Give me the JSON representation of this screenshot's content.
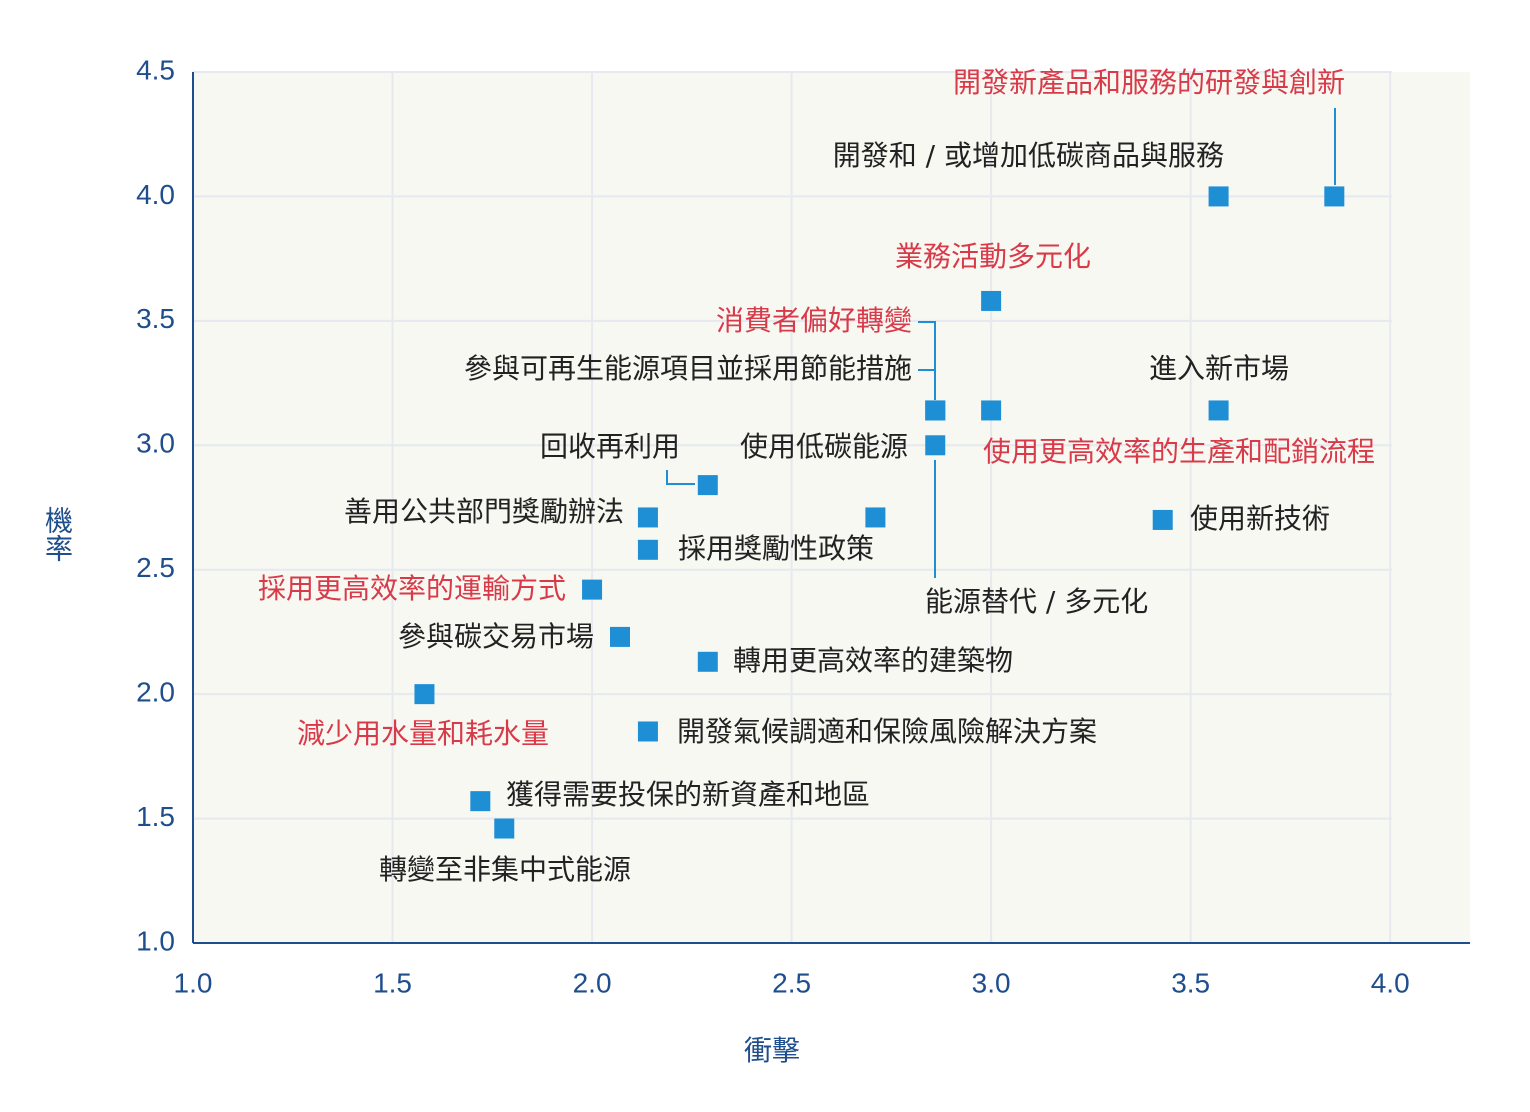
{
  "chart_data": {
    "type": "scatter",
    "x_label": "衝擊",
    "y_label": "機率",
    "point_labels": [
      "開發新產品和服務的研發與創新",
      "開發和 / 或增加低碳商品與服務",
      "業務活動多元化",
      "消費者偏好轉變",
      "參與可再生能源項目並採用節能措施",
      "使用更高效率的生產和配銷流程",
      "進入新市場",
      "使用低碳能源",
      "回收再利用",
      "善用公共部門獎勵辦法",
      "能源替代 / 多元化",
      "使用新技術",
      "採用獎勵性政策",
      "採用更高效率的運輸方式",
      "參與碳交易市場",
      "轉用更高效率的建築物",
      "減少用水量和耗水量",
      "開發氣候調適和保險風險解決方案",
      "獲得需要投保的新資產和地區",
      "轉變至非集中式能源"
    ],
    "x": [
      3.86,
      3.57,
      3.0,
      2.86,
      2.86,
      3.0,
      3.57,
      2.71,
      2.29,
      2.14,
      2.86,
      3.43,
      2.14,
      2.0,
      2.07,
      2.29,
      1.58,
      2.14,
      1.72,
      1.78
    ],
    "values": [
      4.0,
      4.0,
      3.58,
      3.14,
      3.14,
      3.14,
      3.14,
      2.71,
      2.84,
      2.71,
      3.0,
      2.7,
      2.58,
      2.42,
      2.23,
      2.13,
      2.0,
      1.85,
      1.57,
      1.46
    ],
    "label_colors": [
      "#d93a4a",
      "#222222",
      "#d93a4a",
      "#d93a4a",
      "#222222",
      "#d93a4a",
      "#222222",
      "#222222",
      "#222222",
      "#222222",
      "#222222",
      "#222222",
      "#222222",
      "#d93a4a",
      "#222222",
      "#222222",
      "#d93a4a",
      "#222222",
      "#222222",
      "#222222"
    ],
    "color": "#1e8fd5",
    "xlim": [
      1.0,
      4.2
    ],
    "ylim": [
      1.0,
      4.5
    ],
    "xticks": [
      {
        "value": 1.0,
        "label": "1.0"
      },
      {
        "value": 1.5,
        "label": "1.5"
      },
      {
        "value": 2.0,
        "label": "2.0"
      },
      {
        "value": 2.5,
        "label": "2.5"
      },
      {
        "value": 3.0,
        "label": "3.0"
      },
      {
        "value": 3.5,
        "label": "3.5"
      },
      {
        "value": 4.0,
        "label": "4.0"
      }
    ],
    "yticks": [
      {
        "value": 1.0,
        "label": "1.0"
      },
      {
        "value": 1.5,
        "label": "1.5"
      },
      {
        "value": 2.0,
        "label": "2.0"
      },
      {
        "value": 2.5,
        "label": "2.5"
      },
      {
        "value": 3.0,
        "label": "3.0"
      },
      {
        "value": 3.5,
        "label": "3.5"
      },
      {
        "value": 4.0,
        "label": "4.0"
      },
      {
        "value": 4.5,
        "label": "4.5"
      }
    ],
    "grid": true
  }
}
